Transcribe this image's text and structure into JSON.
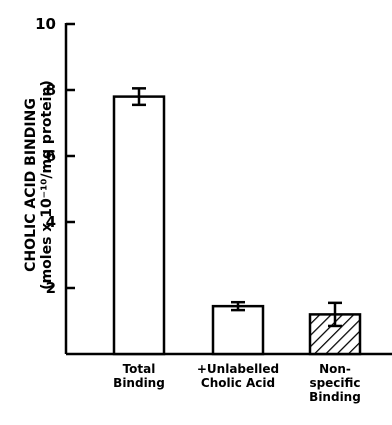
{
  "chart_data": {
    "type": "bar",
    "ylabel_line1": "CHOLIC ACID BINDING",
    "ylabel_line2": "(moles x 10⁻¹⁰/mg protein)",
    "ylim": [
      0,
      10
    ],
    "yticks": [
      2,
      4,
      6,
      8,
      10
    ],
    "ytick_labels": [
      "2",
      "4",
      "6",
      "8",
      "10"
    ],
    "categories": [
      {
        "lines": [
          "Total",
          "Binding"
        ]
      },
      {
        "lines": [
          "+Unlabelled",
          "Cholic Acid"
        ]
      },
      {
        "lines": [
          "Non-",
          "specific",
          "Binding"
        ]
      }
    ],
    "values": [
      7.8,
      1.45,
      1.2
    ],
    "errors": [
      0.25,
      0.12,
      0.35
    ],
    "hatched": [
      false,
      false,
      true
    ],
    "grid": false,
    "legend": "none"
  }
}
